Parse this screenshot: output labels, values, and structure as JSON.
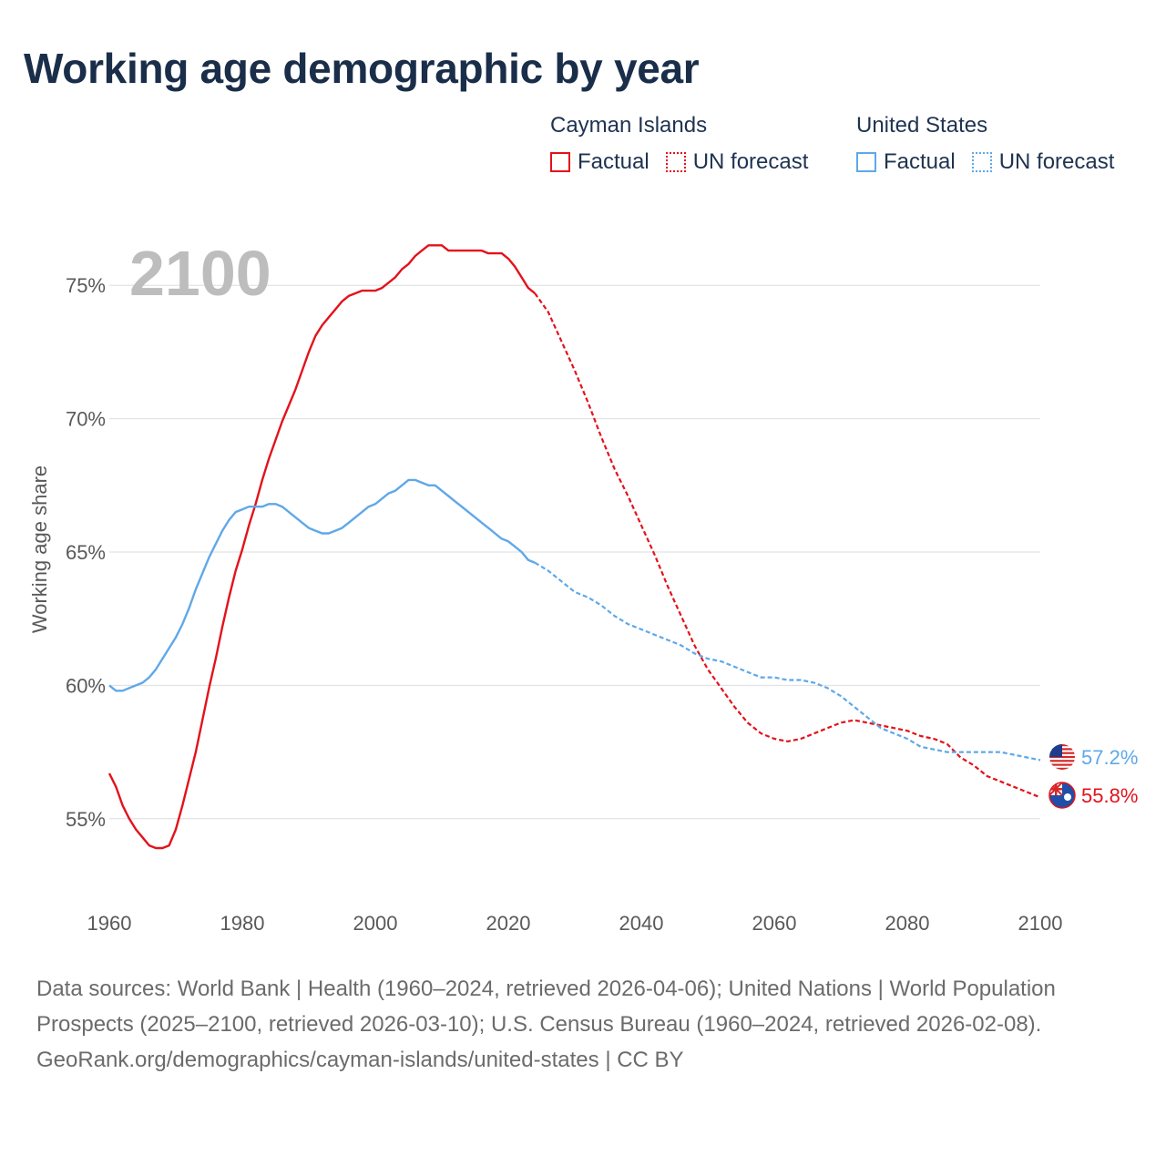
{
  "title": "Working age demographic by year",
  "legend": {
    "groups": [
      {
        "name": "Cayman Islands",
        "color": "#e3121b",
        "factual_label": "Factual",
        "forecast_label": "UN forecast"
      },
      {
        "name": "United States",
        "color": "#5fa8e8",
        "factual_label": "Factual",
        "forecast_label": "UN forecast"
      }
    ]
  },
  "footer": {
    "sources": "Data sources: World Bank | Health (1960–2024, retrieved 2026-04-06); United Nations | World Population Prospects (2025–2100, retrieved 2026-03-10); U.S. Census Bureau (1960–2024, retrieved 2026-02-08).",
    "attribution": "GeoRank.org/demographics/cayman-islands/united-states | CC BY"
  },
  "chart_data": {
    "type": "line",
    "title": "Working age demographic by year",
    "ylabel": "Working age share",
    "xlabel": "",
    "current_year_label": "2100",
    "xlim": [
      1960,
      2100
    ],
    "ylim": [
      52.5,
      77.5
    ],
    "x_ticks": [
      1960,
      1980,
      2000,
      2020,
      2040,
      2060,
      2080,
      2100
    ],
    "y_ticks": [
      55,
      60,
      65,
      70,
      75
    ],
    "y_tick_labels": [
      "55%",
      "60%",
      "65%",
      "70%",
      "75%"
    ],
    "grid": true,
    "legend_position": "top-right",
    "factual_end_year": 2024,
    "series": [
      {
        "name": "Cayman Islands",
        "color": "#e3121b",
        "end_label": "55.8%",
        "end_icon": "cayman-islands-flag-icon",
        "points": [
          [
            1960,
            56.7
          ],
          [
            1961,
            56.2
          ],
          [
            1962,
            55.5
          ],
          [
            1963,
            55.0
          ],
          [
            1964,
            54.6
          ],
          [
            1965,
            54.3
          ],
          [
            1966,
            54.0
          ],
          [
            1967,
            53.9
          ],
          [
            1968,
            53.9
          ],
          [
            1969,
            54.0
          ],
          [
            1970,
            54.6
          ],
          [
            1971,
            55.5
          ],
          [
            1972,
            56.5
          ],
          [
            1973,
            57.5
          ],
          [
            1974,
            58.7
          ],
          [
            1975,
            59.9
          ],
          [
            1976,
            61.0
          ],
          [
            1977,
            62.2
          ],
          [
            1978,
            63.3
          ],
          [
            1979,
            64.3
          ],
          [
            1980,
            65.1
          ],
          [
            1981,
            66.0
          ],
          [
            1982,
            66.8
          ],
          [
            1983,
            67.7
          ],
          [
            1984,
            68.5
          ],
          [
            1985,
            69.2
          ],
          [
            1986,
            69.9
          ],
          [
            1987,
            70.5
          ],
          [
            1988,
            71.1
          ],
          [
            1989,
            71.8
          ],
          [
            1990,
            72.5
          ],
          [
            1991,
            73.1
          ],
          [
            1992,
            73.5
          ],
          [
            1993,
            73.8
          ],
          [
            1994,
            74.1
          ],
          [
            1995,
            74.4
          ],
          [
            1996,
            74.6
          ],
          [
            1997,
            74.7
          ],
          [
            1998,
            74.8
          ],
          [
            1999,
            74.8
          ],
          [
            2000,
            74.8
          ],
          [
            2001,
            74.9
          ],
          [
            2002,
            75.1
          ],
          [
            2003,
            75.3
          ],
          [
            2004,
            75.6
          ],
          [
            2005,
            75.8
          ],
          [
            2006,
            76.1
          ],
          [
            2007,
            76.3
          ],
          [
            2008,
            76.5
          ],
          [
            2009,
            76.5
          ],
          [
            2010,
            76.5
          ],
          [
            2011,
            76.3
          ],
          [
            2012,
            76.3
          ],
          [
            2013,
            76.3
          ],
          [
            2014,
            76.3
          ],
          [
            2015,
            76.3
          ],
          [
            2016,
            76.3
          ],
          [
            2017,
            76.2
          ],
          [
            2018,
            76.2
          ],
          [
            2019,
            76.2
          ],
          [
            2020,
            76.0
          ],
          [
            2021,
            75.7
          ],
          [
            2022,
            75.3
          ],
          [
            2023,
            74.9
          ],
          [
            2024,
            74.7
          ],
          [
            2026,
            74.0
          ],
          [
            2028,
            72.9
          ],
          [
            2030,
            71.8
          ],
          [
            2032,
            70.6
          ],
          [
            2034,
            69.3
          ],
          [
            2036,
            68.1
          ],
          [
            2038,
            67.1
          ],
          [
            2040,
            66.0
          ],
          [
            2042,
            64.9
          ],
          [
            2044,
            63.7
          ],
          [
            2046,
            62.6
          ],
          [
            2048,
            61.5
          ],
          [
            2050,
            60.6
          ],
          [
            2052,
            59.9
          ],
          [
            2054,
            59.2
          ],
          [
            2056,
            58.6
          ],
          [
            2058,
            58.2
          ],
          [
            2060,
            58.0
          ],
          [
            2062,
            57.9
          ],
          [
            2064,
            58.0
          ],
          [
            2066,
            58.2
          ],
          [
            2068,
            58.4
          ],
          [
            2070,
            58.6
          ],
          [
            2072,
            58.7
          ],
          [
            2074,
            58.6
          ],
          [
            2076,
            58.5
          ],
          [
            2078,
            58.4
          ],
          [
            2080,
            58.3
          ],
          [
            2082,
            58.1
          ],
          [
            2084,
            58.0
          ],
          [
            2086,
            57.8
          ],
          [
            2088,
            57.3
          ],
          [
            2090,
            57.0
          ],
          [
            2092,
            56.6
          ],
          [
            2094,
            56.4
          ],
          [
            2096,
            56.2
          ],
          [
            2098,
            56.0
          ],
          [
            2100,
            55.8
          ]
        ]
      },
      {
        "name": "United States",
        "color": "#5fa8e8",
        "end_label": "57.2%",
        "end_icon": "us-flag-icon",
        "points": [
          [
            1960,
            60.0
          ],
          [
            1961,
            59.8
          ],
          [
            1962,
            59.8
          ],
          [
            1963,
            59.9
          ],
          [
            1964,
            60.0
          ],
          [
            1965,
            60.1
          ],
          [
            1966,
            60.3
          ],
          [
            1967,
            60.6
          ],
          [
            1968,
            61.0
          ],
          [
            1969,
            61.4
          ],
          [
            1970,
            61.8
          ],
          [
            1971,
            62.3
          ],
          [
            1972,
            62.9
          ],
          [
            1973,
            63.6
          ],
          [
            1974,
            64.2
          ],
          [
            1975,
            64.8
          ],
          [
            1976,
            65.3
          ],
          [
            1977,
            65.8
          ],
          [
            1978,
            66.2
          ],
          [
            1979,
            66.5
          ],
          [
            1980,
            66.6
          ],
          [
            1981,
            66.7
          ],
          [
            1982,
            66.7
          ],
          [
            1983,
            66.7
          ],
          [
            1984,
            66.8
          ],
          [
            1985,
            66.8
          ],
          [
            1986,
            66.7
          ],
          [
            1987,
            66.5
          ],
          [
            1988,
            66.3
          ],
          [
            1989,
            66.1
          ],
          [
            1990,
            65.9
          ],
          [
            1991,
            65.8
          ],
          [
            1992,
            65.7
          ],
          [
            1993,
            65.7
          ],
          [
            1994,
            65.8
          ],
          [
            1995,
            65.9
          ],
          [
            1996,
            66.1
          ],
          [
            1997,
            66.3
          ],
          [
            1998,
            66.5
          ],
          [
            1999,
            66.7
          ],
          [
            2000,
            66.8
          ],
          [
            2001,
            67.0
          ],
          [
            2002,
            67.2
          ],
          [
            2003,
            67.3
          ],
          [
            2004,
            67.5
          ],
          [
            2005,
            67.7
          ],
          [
            2006,
            67.7
          ],
          [
            2007,
            67.6
          ],
          [
            2008,
            67.5
          ],
          [
            2009,
            67.5
          ],
          [
            2010,
            67.3
          ],
          [
            2011,
            67.1
          ],
          [
            2012,
            66.9
          ],
          [
            2013,
            66.7
          ],
          [
            2014,
            66.5
          ],
          [
            2015,
            66.3
          ],
          [
            2016,
            66.1
          ],
          [
            2017,
            65.9
          ],
          [
            2018,
            65.7
          ],
          [
            2019,
            65.5
          ],
          [
            2020,
            65.4
          ],
          [
            2021,
            65.2
          ],
          [
            2022,
            65.0
          ],
          [
            2023,
            64.7
          ],
          [
            2024,
            64.6
          ],
          [
            2026,
            64.3
          ],
          [
            2028,
            63.9
          ],
          [
            2030,
            63.5
          ],
          [
            2032,
            63.3
          ],
          [
            2034,
            63.0
          ],
          [
            2036,
            62.6
          ],
          [
            2038,
            62.3
          ],
          [
            2040,
            62.1
          ],
          [
            2042,
            61.9
          ],
          [
            2044,
            61.7
          ],
          [
            2046,
            61.5
          ],
          [
            2048,
            61.2
          ],
          [
            2050,
            61.0
          ],
          [
            2052,
            60.9
          ],
          [
            2054,
            60.7
          ],
          [
            2056,
            60.5
          ],
          [
            2058,
            60.3
          ],
          [
            2060,
            60.3
          ],
          [
            2062,
            60.2
          ],
          [
            2064,
            60.2
          ],
          [
            2066,
            60.1
          ],
          [
            2068,
            59.9
          ],
          [
            2070,
            59.6
          ],
          [
            2072,
            59.2
          ],
          [
            2074,
            58.8
          ],
          [
            2076,
            58.4
          ],
          [
            2078,
            58.2
          ],
          [
            2080,
            58.0
          ],
          [
            2082,
            57.7
          ],
          [
            2084,
            57.6
          ],
          [
            2086,
            57.5
          ],
          [
            2088,
            57.5
          ],
          [
            2090,
            57.5
          ],
          [
            2092,
            57.5
          ],
          [
            2094,
            57.5
          ],
          [
            2096,
            57.4
          ],
          [
            2098,
            57.3
          ],
          [
            2100,
            57.2
          ]
        ]
      }
    ]
  }
}
